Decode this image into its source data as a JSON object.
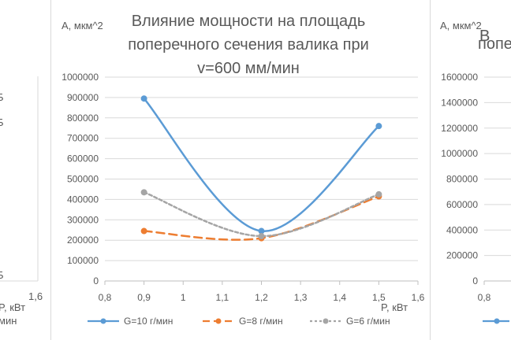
{
  "main_chart": {
    "title_lines": [
      "Влияние мощности на площадь",
      "поперечного сечения валика при",
      "v=600 мм/мин"
    ],
    "ylabel": "А, мкм^2",
    "xlabel": "P, кВт",
    "legend": [
      "G=10 г/мин",
      "G=8 г/мин",
      "G=6 г/мин"
    ]
  },
  "chart_data": [
    {
      "type": "line",
      "title": "Влияние мощности на площадь поперечного сечения валика при v=600 мм/мин",
      "xlabel": "P, кВт",
      "ylabel": "А, мкм^2",
      "xlim": [
        0.8,
        1.6
      ],
      "ylim": [
        0,
        1000000
      ],
      "x_ticks": [
        "0,8",
        "0,9",
        "1",
        "1,1",
        "1,2",
        "1,3",
        "1,4",
        "1,5",
        "1,6"
      ],
      "y_ticks": [
        "0",
        "100000",
        "200000",
        "300000",
        "400000",
        "500000",
        "600000",
        "700000",
        "800000",
        "900000",
        "1000000"
      ],
      "grid": "horizontal",
      "legend_position": "bottom",
      "series": [
        {
          "name": "G=10 г/мин",
          "x": [
            0.9,
            1.2,
            1.5
          ],
          "values": [
            895000,
            245000,
            760000
          ],
          "color": "#5b9bd5",
          "dash": "solid",
          "smooth": true
        },
        {
          "name": "G=8 г/мин",
          "x": [
            0.9,
            1.2,
            1.5
          ],
          "values": [
            245000,
            210000,
            415000
          ],
          "color": "#ed7d31",
          "dash": "long-dash",
          "smooth": true
        },
        {
          "name": "G=6 г/мин",
          "x": [
            0.9,
            1.2,
            1.5
          ],
          "values": [
            435000,
            220000,
            425000
          ],
          "color": "#a5a5a5",
          "dash": "short-dash",
          "smooth": true
        }
      ]
    },
    {
      "type": "line",
      "ylabel": "А, мкм^2",
      "ylim": [
        0,
        1600000
      ],
      "y_ticks": [
        "0",
        "200000",
        "400000",
        "600000",
        "800000",
        "1000000",
        "1200000",
        "1400000",
        "1600000"
      ],
      "x_ticks": [
        "0,8"
      ],
      "grid": "horizontal"
    }
  ],
  "left_fragment": {
    "x_ticks": [
      "1,6"
    ],
    "xlabel": "P, кВт",
    "legend_tail": "мин",
    "axis_letters": [
      "Б",
      "Б",
      "Б"
    ]
  },
  "right_fragment": {
    "title_partial": "попе"
  }
}
